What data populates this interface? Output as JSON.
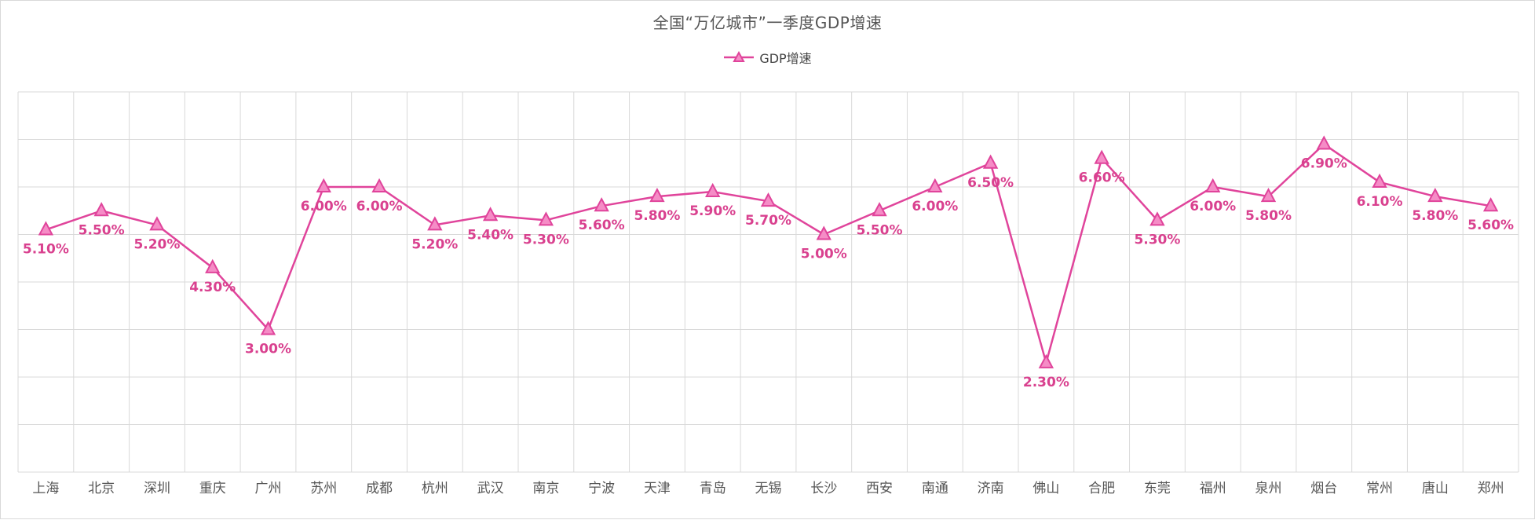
{
  "chart_data": {
    "type": "line",
    "title": "全国“万亿城市”一季度GDP增速",
    "categories": [
      "上海",
      "北京",
      "深圳",
      "重庆",
      "广州",
      "苏州",
      "成都",
      "杭州",
      "武汉",
      "南京",
      "宁波",
      "天津",
      "青岛",
      "无锡",
      "长沙",
      "西安",
      "南通",
      "济南",
      "佛山",
      "合肥",
      "东莞",
      "福州",
      "泉州",
      "烟台",
      "常州",
      "唐山",
      "郑州"
    ],
    "series": [
      {
        "name": "GDP增速",
        "values": [
          5.1,
          5.5,
          5.2,
          4.3,
          3.0,
          6.0,
          6.0,
          5.2,
          5.4,
          5.3,
          5.6,
          5.8,
          5.9,
          5.7,
          5.0,
          5.5,
          6.0,
          6.5,
          2.3,
          6.6,
          5.3,
          6.0,
          5.8,
          6.9,
          6.1,
          5.8,
          5.6
        ],
        "labels": [
          "5.10%",
          "5.50%",
          "5.20%",
          "4.30%",
          "3.00%",
          "6.00%",
          "6.00%",
          "5.20%",
          "5.40%",
          "5.30%",
          "5.60%",
          "5.80%",
          "5.90%",
          "5.70%",
          "5.00%",
          "5.50%",
          "6.00%",
          "6.50%",
          "2.30%",
          "6.60%",
          "5.30%",
          "6.00%",
          "5.80%",
          "6.90%",
          "6.10%",
          "5.80%",
          "5.60%"
        ]
      }
    ],
    "ylim": [
      0,
      8
    ],
    "grid": true,
    "legend": "top-center",
    "colors": {
      "series": "#e0449b",
      "marker_fill": "#f58cc6",
      "label": "#d9418f",
      "grid": "#d9d9d9"
    }
  }
}
